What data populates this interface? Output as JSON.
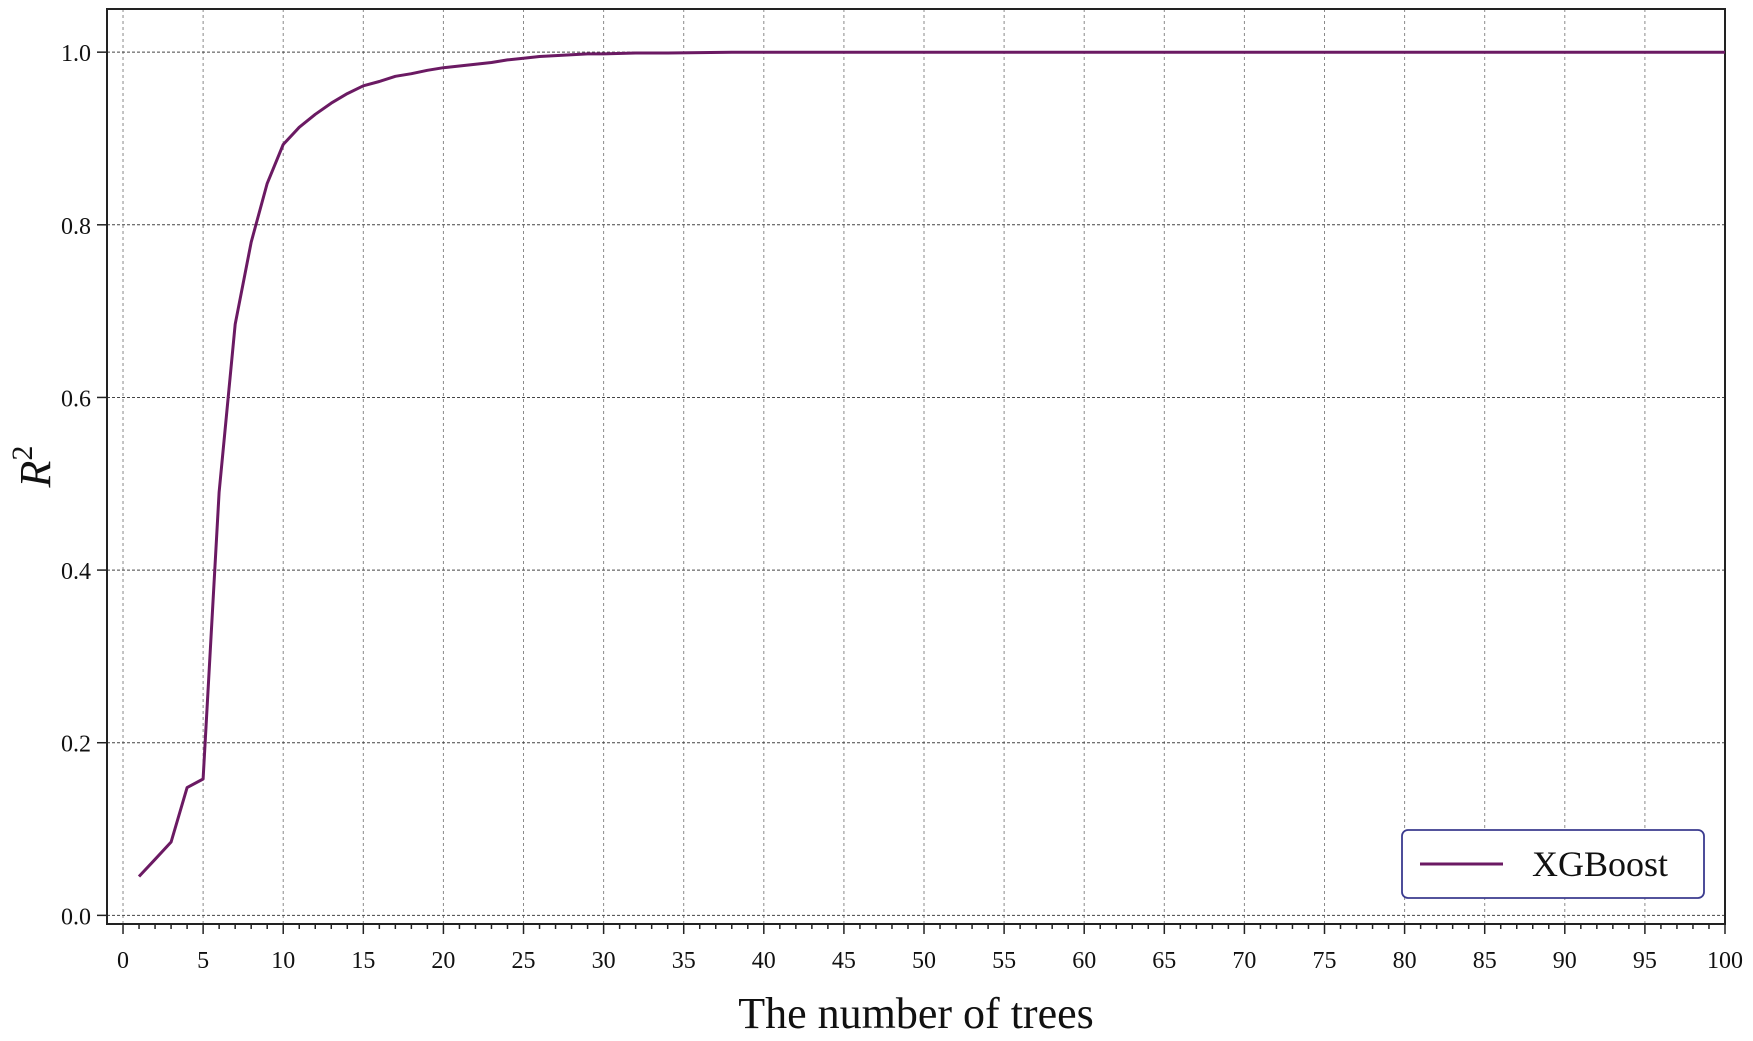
{
  "chart_data": {
    "type": "line",
    "title": "",
    "xlabel": "The number of trees",
    "ylabel_base": "R",
    "ylabel_sup": "2",
    "xlim": [
      -1,
      100
    ],
    "ylim": [
      -0.01,
      1.05
    ],
    "x_ticks": [
      0,
      5,
      10,
      15,
      20,
      25,
      30,
      35,
      40,
      45,
      50,
      55,
      60,
      65,
      70,
      75,
      80,
      85,
      90,
      95,
      100
    ],
    "y_ticks": [
      0.0,
      0.2,
      0.4,
      0.6,
      0.8,
      1.0
    ],
    "y_tick_labels": [
      "0.0",
      "0.2",
      "0.4",
      "0.6",
      "0.8",
      "1.0"
    ],
    "grid": true,
    "legend_position": "bottom-right",
    "series": [
      {
        "name": "XGBoost",
        "color": "#6b1a63",
        "x": [
          1,
          2,
          3,
          4,
          5,
          6,
          7,
          8,
          9,
          10,
          11,
          12,
          13,
          14,
          15,
          16,
          17,
          18,
          19,
          20,
          21,
          22,
          23,
          24,
          25,
          26,
          27,
          28,
          29,
          30,
          32,
          34,
          36,
          38,
          40,
          45,
          50,
          60,
          70,
          80,
          90,
          100
        ],
        "y": [
          0.045,
          0.065,
          0.085,
          0.148,
          0.158,
          0.49,
          0.685,
          0.78,
          0.848,
          0.893,
          0.913,
          0.928,
          0.941,
          0.952,
          0.961,
          0.966,
          0.972,
          0.975,
          0.979,
          0.982,
          0.984,
          0.986,
          0.988,
          0.991,
          0.993,
          0.995,
          0.996,
          0.997,
          0.998,
          0.998,
          0.999,
          0.999,
          0.9995,
          0.9998,
          1.0,
          1.0,
          1.0,
          1.0,
          1.0,
          1.0,
          1.0,
          1.0
        ]
      }
    ]
  }
}
